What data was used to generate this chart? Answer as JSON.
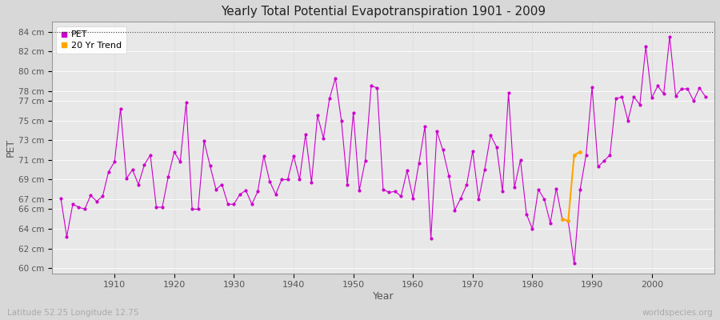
{
  "title": "Yearly Total Potential Evapotranspiration 1901 - 2009",
  "xlabel": "Year",
  "ylabel": "PET",
  "lat_lon_label": "Latitude 52.25 Longitude 12.75",
  "watermark": "worldspecies.org",
  "ylim": [
    59.5,
    85.0
  ],
  "xlim": [
    1899.5,
    2010.5
  ],
  "ytick_labels": [
    "60 cm",
    "62 cm",
    "64 cm",
    "66 cm",
    "67 cm",
    "69 cm",
    "71 cm",
    "73 cm",
    "75 cm",
    "77 cm",
    "78 cm",
    "80 cm",
    "82 cm",
    "84 cm"
  ],
  "ytick_values": [
    60,
    62,
    64,
    66,
    67,
    69,
    71,
    73,
    75,
    77,
    78,
    80,
    82,
    84
  ],
  "pet_color": "#cc00cc",
  "trend_color": "#ffa500",
  "fig_bg_color": "#d8d8d8",
  "plot_bg_color": "#e8e8e8",
  "grid_color": "#ffffff",
  "pet_data": {
    "years": [
      1901,
      1902,
      1903,
      1904,
      1905,
      1906,
      1907,
      1908,
      1909,
      1910,
      1911,
      1912,
      1913,
      1914,
      1915,
      1916,
      1917,
      1918,
      1919,
      1920,
      1921,
      1922,
      1923,
      1924,
      1925,
      1926,
      1927,
      1928,
      1929,
      1930,
      1931,
      1932,
      1933,
      1934,
      1935,
      1936,
      1937,
      1938,
      1939,
      1940,
      1941,
      1942,
      1943,
      1944,
      1945,
      1946,
      1947,
      1948,
      1949,
      1950,
      1951,
      1952,
      1953,
      1954,
      1955,
      1956,
      1957,
      1958,
      1959,
      1960,
      1961,
      1962,
      1963,
      1964,
      1965,
      1966,
      1967,
      1968,
      1969,
      1970,
      1971,
      1972,
      1973,
      1974,
      1975,
      1976,
      1977,
      1978,
      1979,
      1980,
      1981,
      1982,
      1983,
      1984,
      1985,
      1986,
      1987,
      1988,
      1989,
      1990,
      1991,
      1992,
      1993,
      1994,
      1995,
      1996,
      1997,
      1998,
      1999,
      2000,
      2001,
      2002,
      2003,
      2004,
      2005,
      2006,
      2007,
      2008,
      2009
    ],
    "values": [
      67.1,
      63.2,
      66.5,
      66.2,
      66.0,
      67.4,
      66.8,
      67.3,
      69.8,
      70.8,
      76.2,
      69.1,
      70.0,
      68.5,
      70.5,
      71.5,
      66.2,
      66.2,
      69.3,
      71.8,
      70.8,
      76.8,
      66.0,
      66.0,
      72.9,
      70.4,
      68.0,
      68.5,
      66.5,
      66.5,
      67.5,
      67.9,
      66.5,
      67.8,
      71.4,
      68.8,
      67.5,
      69.0,
      69.0,
      71.4,
      69.0,
      73.6,
      68.7,
      75.5,
      73.2,
      77.2,
      79.3,
      75.0,
      68.5,
      75.8,
      67.9,
      70.9,
      78.5,
      78.3,
      68.0,
      67.7,
      67.8,
      67.3,
      69.9,
      67.1,
      70.7,
      74.4,
      63.0,
      73.9,
      72.0,
      69.4,
      65.9,
      67.1,
      68.5,
      71.9,
      67.0,
      70.0,
      73.5,
      72.3,
      67.8,
      77.8,
      68.2,
      71.0,
      65.5,
      64.0,
      68.0,
      67.0,
      64.6,
      68.1,
      65.0,
      64.8,
      60.5,
      68.0,
      71.5,
      78.4,
      70.3,
      70.9,
      71.5,
      77.2,
      77.4,
      75.0,
      77.4,
      76.6,
      82.5,
      77.3,
      78.5,
      77.7,
      83.5,
      77.5,
      78.2,
      78.2,
      77.0,
      78.3,
      77.4
    ]
  },
  "trend_years": [
    1985,
    1986,
    1987,
    1988
  ],
  "trend_values": [
    65.0,
    64.8,
    71.5,
    71.8
  ]
}
